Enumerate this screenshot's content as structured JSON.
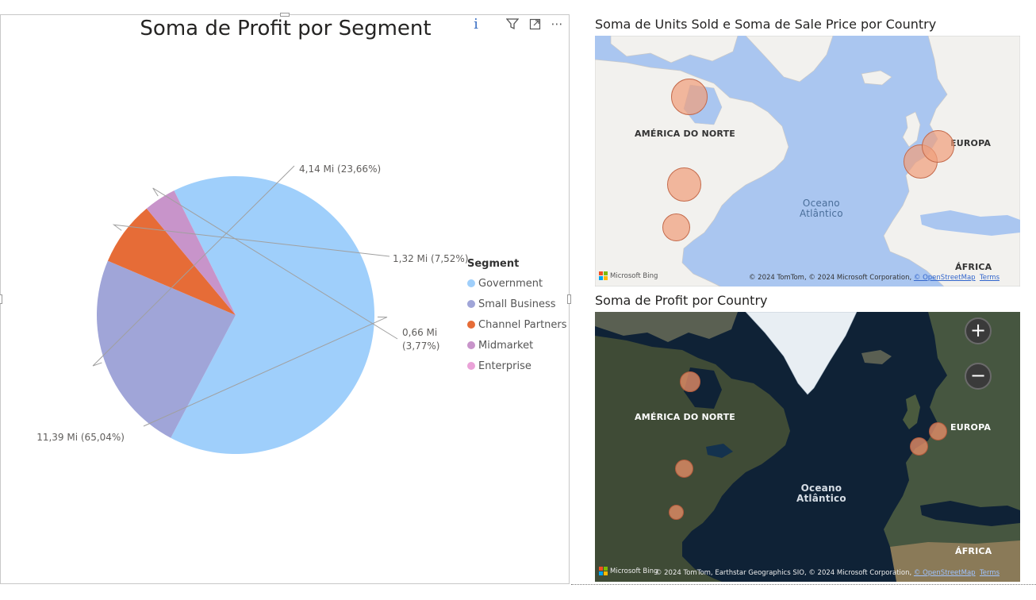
{
  "pie_visual": {
    "title": "Soma de Profit por Segment",
    "header_icons": {
      "info": "info-icon",
      "filter": "filter-icon",
      "focus": "focus-mode-icon",
      "more": "more-options-icon"
    },
    "legend_title": "Segment",
    "chart_data": {
      "type": "pie",
      "title": "Soma de Profit por Segment",
      "legend_title": "Segment",
      "legend_position": "right",
      "slices": [
        {
          "name": "Government",
          "value": 11.39,
          "percent": 65.04,
          "label": "11,39 Mi (65,04%)",
          "color": "#9fcffb"
        },
        {
          "name": "Small Business",
          "value": 4.14,
          "percent": 23.66,
          "label": "4,14 Mi (23,66%)",
          "color": "#a0a5d8"
        },
        {
          "name": "Channel Partners",
          "value": 1.32,
          "percent": 7.52,
          "label": "1,32 Mi (7,52%)",
          "color": "#e66c37"
        },
        {
          "name": "Midmarket",
          "value": 0.66,
          "percent": 3.77,
          "label_line1": "0,66 Mi",
          "label_line2": "(3,77%)",
          "color": "#c894ca"
        },
        {
          "name": "Enterprise",
          "value": 0,
          "percent": 0,
          "label": "",
          "color": "#eaa2d8"
        }
      ]
    }
  },
  "map1": {
    "title": "Soma de Units Sold e Soma de Sale Price por Country",
    "labels": {
      "north_america": "AMÉRICA DO NORTE",
      "europe": "EUROPA",
      "ocean_line1": "Oceano",
      "ocean_line2": "Atlântico",
      "africa": "ÁFRICA"
    },
    "attribution": "© 2024 TomTom, © 2024 Microsoft Corporation,",
    "osm_link": "© OpenStreetMap",
    "terms_link": "Terms",
    "bing_label": "Microsoft Bing",
    "colors": {
      "water": "#aac6f0",
      "land": "#f2f1ee",
      "bubble": "#f0a07d"
    }
  },
  "map2": {
    "title": "Soma de Profit por Country",
    "labels": {
      "north_america": "AMÉRICA DO NORTE",
      "europe": "EUROPA",
      "ocean_line1": "Oceano",
      "ocean_line2": "Atlântico",
      "africa": "ÁFRICA"
    },
    "attribution": "© 2024 TomTom, Earthstar Geographics SIO, © 2024 Microsoft Corporation,",
    "osm_link": "© OpenStreetMap",
    "terms_link": "Terms",
    "bing_label": "Microsoft Bing",
    "zoom_in": "+",
    "zoom_out": "−",
    "colors": {
      "water": "#0f2236",
      "land": "#3b4a3a",
      "bubble": "#e28c66"
    }
  }
}
